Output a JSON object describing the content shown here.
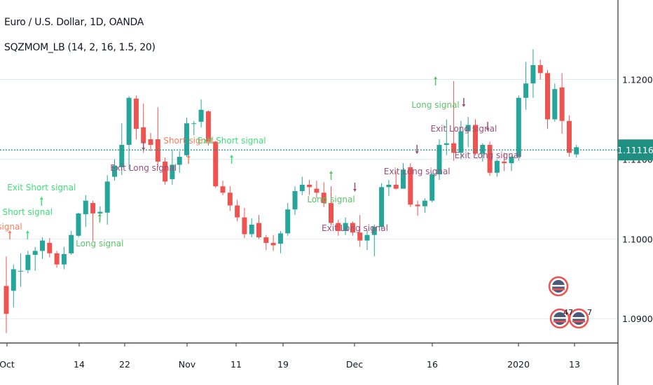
{
  "header": {
    "symbol_title": "Euro / U.S. Dollar, 1D, OANDA",
    "indicator_title": "SQZMOM_LB (14, 2, 16, 1.5, 20)"
  },
  "colors": {
    "up": "#26a69a",
    "down": "#ef5350",
    "grid": "#e1ecf2",
    "price_line": "#089981",
    "price_tag_bg": "#1e8f81",
    "long_signal": "#5bc46a",
    "exit_short": "#3fe07a",
    "short_signal": "#ff7a5a",
    "exit_long": "#9b4f7a",
    "axis_text": "#131722"
  },
  "chart_data": {
    "type": "candlestick",
    "title": "Euro / U.S. Dollar, 1D, OANDA",
    "ylim": [
      1.0843,
      1.1279
    ],
    "y_ticks": [
      "1.12000",
      "1.11000",
      "1.10000",
      "1.09000"
    ],
    "x_ticks": [
      "Oct",
      "14",
      "22",
      "Nov",
      "11",
      "19",
      "Dec",
      "16",
      "2020",
      "13"
    ],
    "current_price": "1.11116",
    "candles": [
      {
        "o": 1.0941,
        "h": 1.0978,
        "l": 1.0882,
        "c": 1.0906
      },
      {
        "o": 1.0935,
        "h": 1.0968,
        "l": 1.0914,
        "c": 1.0962
      },
      {
        "o": 1.096,
        "h": 1.0982,
        "l": 1.094,
        "c": 1.096
      },
      {
        "o": 1.0961,
        "h": 1.0985,
        "l": 1.0957,
        "c": 1.098
      },
      {
        "o": 1.098,
        "h": 1.099,
        "l": 1.096,
        "c": 1.0985
      },
      {
        "o": 1.0985,
        "h": 1.1002,
        "l": 1.0975,
        "c": 1.0998
      },
      {
        "o": 1.0995,
        "h": 1.1001,
        "l": 1.0977,
        "c": 1.0982
      },
      {
        "o": 1.0982,
        "h": 1.0985,
        "l": 1.0964,
        "c": 1.0968
      },
      {
        "o": 1.0968,
        "h": 1.099,
        "l": 1.0962,
        "c": 1.0981
      },
      {
        "o": 1.0982,
        "h": 1.101,
        "l": 1.098,
        "c": 1.1005
      },
      {
        "o": 1.1004,
        "h": 1.1033,
        "l": 1.1002,
        "c": 1.1032
      },
      {
        "o": 1.1031,
        "h": 1.1055,
        "l": 1.1015,
        "c": 1.1048
      },
      {
        "o": 1.1045,
        "h": 1.1048,
        "l": 1.0997,
        "c": 1.1032
      },
      {
        "o": 1.1032,
        "h": 1.1041,
        "l": 1.1022,
        "c": 1.1034
      },
      {
        "o": 1.1033,
        "h": 1.108,
        "l": 1.1018,
        "c": 1.1072
      },
      {
        "o": 1.1078,
        "h": 1.11,
        "l": 1.1073,
        "c": 1.1092
      },
      {
        "o": 1.109,
        "h": 1.1145,
        "l": 1.108,
        "c": 1.1118
      },
      {
        "o": 1.1118,
        "h": 1.1179,
        "l": 1.1087,
        "c": 1.1177
      },
      {
        "o": 1.1176,
        "h": 1.118,
        "l": 1.1125,
        "c": 1.1138
      },
      {
        "o": 1.114,
        "h": 1.117,
        "l": 1.1108,
        "c": 1.112
      },
      {
        "o": 1.1125,
        "h": 1.1133,
        "l": 1.111,
        "c": 1.1118
      },
      {
        "o": 1.1125,
        "h": 1.1165,
        "l": 1.109,
        "c": 1.1097
      },
      {
        "o": 1.1097,
        "h": 1.1102,
        "l": 1.1068,
        "c": 1.1072
      },
      {
        "o": 1.1075,
        "h": 1.1112,
        "l": 1.1068,
        "c": 1.1093
      },
      {
        "o": 1.1093,
        "h": 1.111,
        "l": 1.1083,
        "c": 1.1103
      },
      {
        "o": 1.1105,
        "h": 1.1152,
        "l": 1.1103,
        "c": 1.1145
      },
      {
        "o": 1.1145,
        "h": 1.1148,
        "l": 1.113,
        "c": 1.1145
      },
      {
        "o": 1.1147,
        "h": 1.1175,
        "l": 1.114,
        "c": 1.1162
      },
      {
        "o": 1.116,
        "h": 1.1161,
        "l": 1.1117,
        "c": 1.1122
      },
      {
        "o": 1.1122,
        "h": 1.1123,
        "l": 1.1064,
        "c": 1.1066
      },
      {
        "o": 1.1066,
        "h": 1.1073,
        "l": 1.1055,
        "c": 1.1058
      },
      {
        "o": 1.1058,
        "h": 1.1066,
        "l": 1.1035,
        "c": 1.1042
      },
      {
        "o": 1.1042,
        "h": 1.1049,
        "l": 1.1022,
        "c": 1.1027
      },
      {
        "o": 1.1027,
        "h": 1.1039,
        "l": 1.1001,
        "c": 1.1006
      },
      {
        "o": 1.1006,
        "h": 1.1026,
        "l": 1.1002,
        "c": 1.1018
      },
      {
        "o": 1.102,
        "h": 1.103,
        "l": 1.1,
        "c": 1.1002
      },
      {
        "o": 1.1002,
        "h": 1.1005,
        "l": 1.0986,
        "c": 1.0995
      },
      {
        "o": 1.0995,
        "h": 1.1005,
        "l": 1.0985,
        "c": 1.0992
      },
      {
        "o": 1.0994,
        "h": 1.101,
        "l": 1.0982,
        "c": 1.1007
      },
      {
        "o": 1.1007,
        "h": 1.1045,
        "l": 1.1004,
        "c": 1.1037
      },
      {
        "o": 1.1037,
        "h": 1.1066,
        "l": 1.103,
        "c": 1.106
      },
      {
        "o": 1.106,
        "h": 1.1078,
        "l": 1.1055,
        "c": 1.1068
      },
      {
        "o": 1.1068,
        "h": 1.1074,
        "l": 1.1055,
        "c": 1.1065
      },
      {
        "o": 1.1063,
        "h": 1.1073,
        "l": 1.1051,
        "c": 1.1058
      },
      {
        "o": 1.1058,
        "h": 1.1071,
        "l": 1.104,
        "c": 1.1045
      },
      {
        "o": 1.1045,
        "h": 1.1066,
        "l": 1.1017,
        "c": 1.102
      },
      {
        "o": 1.102,
        "h": 1.1024,
        "l": 1.1004,
        "c": 1.101
      },
      {
        "o": 1.101,
        "h": 1.1027,
        "l": 1.1005,
        "c": 1.102
      },
      {
        "o": 1.102,
        "h": 1.1022,
        "l": 1.1004,
        "c": 1.1008
      },
      {
        "o": 1.1008,
        "h": 1.103,
        "l": 1.099,
        "c": 1.0998
      },
      {
        "o": 1.0998,
        "h": 1.1011,
        "l": 1.0986,
        "c": 1.1005
      },
      {
        "o": 1.1005,
        "h": 1.1018,
        "l": 1.0978,
        "c": 1.1015
      },
      {
        "o": 1.1015,
        "h": 1.107,
        "l": 1.1013,
        "c": 1.1065
      },
      {
        "o": 1.1065,
        "h": 1.1074,
        "l": 1.1054,
        "c": 1.1068
      },
      {
        "o": 1.1068,
        "h": 1.1085,
        "l": 1.1062,
        "c": 1.1063
      },
      {
        "o": 1.1063,
        "h": 1.1095,
        "l": 1.1063,
        "c": 1.1087
      },
      {
        "o": 1.109,
        "h": 1.1095,
        "l": 1.104,
        "c": 1.1043
      },
      {
        "o": 1.1043,
        "h": 1.1048,
        "l": 1.1029,
        "c": 1.1041
      },
      {
        "o": 1.1041,
        "h": 1.1051,
        "l": 1.1033,
        "c": 1.1048
      },
      {
        "o": 1.1048,
        "h": 1.1083,
        "l": 1.1046,
        "c": 1.1081
      },
      {
        "o": 1.1081,
        "h": 1.1125,
        "l": 1.1074,
        "c": 1.1118
      },
      {
        "o": 1.1118,
        "h": 1.115,
        "l": 1.1105,
        "c": 1.112
      },
      {
        "o": 1.112,
        "h": 1.1198,
        "l": 1.1098,
        "c": 1.1108
      },
      {
        "o": 1.1108,
        "h": 1.1148,
        "l": 1.11,
        "c": 1.1135
      },
      {
        "o": 1.1135,
        "h": 1.1153,
        "l": 1.1115,
        "c": 1.1143
      },
      {
        "o": 1.1143,
        "h": 1.115,
        "l": 1.1105,
        "c": 1.1107
      },
      {
        "o": 1.1107,
        "h": 1.112,
        "l": 1.1097,
        "c": 1.1118
      },
      {
        "o": 1.1118,
        "h": 1.1122,
        "l": 1.1079,
        "c": 1.1083
      },
      {
        "o": 1.1083,
        "h": 1.11,
        "l": 1.1078,
        "c": 1.1098
      },
      {
        "o": 1.1097,
        "h": 1.1108,
        "l": 1.1085,
        "c": 1.1095
      },
      {
        "o": 1.1095,
        "h": 1.1105,
        "l": 1.1085,
        "c": 1.1103
      },
      {
        "o": 1.1103,
        "h": 1.118,
        "l": 1.1098,
        "c": 1.1177
      },
      {
        "o": 1.1177,
        "h": 1.1222,
        "l": 1.1162,
        "c": 1.1195
      },
      {
        "o": 1.1195,
        "h": 1.1238,
        "l": 1.1177,
        "c": 1.1218
      },
      {
        "o": 1.1218,
        "h": 1.1225,
        "l": 1.12,
        "c": 1.1208
      },
      {
        "o": 1.1208,
        "h": 1.1212,
        "l": 1.1138,
        "c": 1.115
      },
      {
        "o": 1.115,
        "h": 1.1195,
        "l": 1.1147,
        "c": 1.1188
      },
      {
        "o": 1.119,
        "h": 1.1208,
        "l": 1.1132,
        "c": 1.1148
      },
      {
        "o": 1.1148,
        "h": 1.1155,
        "l": 1.1103,
        "c": 1.1108
      },
      {
        "o": 1.1106,
        "h": 1.1118,
        "l": 1.1102,
        "c": 1.1115
      }
    ],
    "signals": [
      {
        "label": "Exit Long signal",
        "i": 19,
        "kind": "exit_long",
        "arrow": "down"
      },
      {
        "label": "Exit Short signal",
        "i": 1,
        "kind": "exit_short",
        "arrow": "up"
      },
      {
        "label": "Short signal",
        "i": 1,
        "kind": "exit_short",
        "arrow": "up"
      },
      {
        "label": "signal",
        "i": 0,
        "kind": "short_signal",
        "arrow": "up"
      },
      {
        "label": "Long signal",
        "i": 11,
        "kind": "long_signal",
        "arrow": "up"
      },
      {
        "label": "Short signal",
        "i": 27,
        "kind": "short_signal",
        "arrow": "up"
      },
      {
        "label": "Exit Short signal",
        "i": 32,
        "kind": "exit_short",
        "arrow": "up"
      },
      {
        "label": "Long signal",
        "i": 45,
        "kind": "long_signal",
        "arrow": "up"
      },
      {
        "label": "Exit Long signal",
        "i": 45,
        "kind": "exit_long",
        "arrow": "down"
      },
      {
        "label": "Exit Long signal",
        "i": 54,
        "kind": "exit_long",
        "arrow": "down"
      },
      {
        "label": "Long signal",
        "i": 62,
        "kind": "long_signal",
        "arrow": "up"
      },
      {
        "label": "Exit Long signal",
        "i": 63,
        "kind": "exit_long",
        "arrow": "down"
      },
      {
        "label": "Exit Long signal",
        "i": 67,
        "kind": "exit_long",
        "arrow": "down"
      }
    ],
    "event_badges": [
      "4",
      "7",
      "7"
    ]
  }
}
